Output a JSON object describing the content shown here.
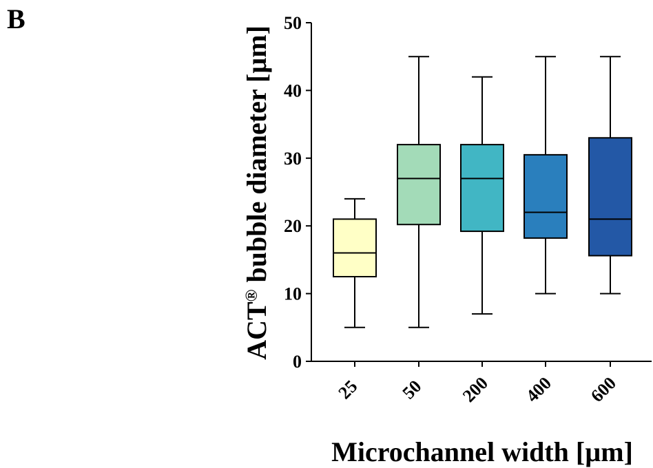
{
  "panel_label": "B",
  "chart_data": {
    "type": "boxplot",
    "title": "",
    "xlabel": "Microchannel width [µm]",
    "ylabel_main": "ACT",
    "ylabel_sup": "®",
    "ylabel_rest": " bubble diameter [µm]",
    "ylim": [
      0,
      50
    ],
    "yticks": [
      0,
      10,
      20,
      30,
      40,
      50
    ],
    "categories": [
      "25",
      "50",
      "200",
      "400",
      "600"
    ],
    "boxes": [
      {
        "category": "25",
        "min": 5,
        "q1": 12.5,
        "median": 16,
        "q3": 21,
        "max": 24,
        "color": "#ffffc6"
      },
      {
        "category": "50",
        "min": 5,
        "q1": 20.2,
        "median": 27,
        "q3": 32,
        "max": 45,
        "color": "#a3dbb8"
      },
      {
        "category": "200",
        "min": 7,
        "q1": 19.2,
        "median": 27,
        "q3": 32,
        "max": 42,
        "color": "#41b6c4"
      },
      {
        "category": "400",
        "min": 10,
        "q1": 18.2,
        "median": 22,
        "q3": 30.5,
        "max": 45,
        "color": "#2a7fbd"
      },
      {
        "category": "600",
        "min": 10,
        "q1": 15.6,
        "median": 21,
        "q3": 33,
        "max": 45,
        "color": "#2358a6"
      }
    ],
    "grid": false,
    "legend": "none"
  }
}
